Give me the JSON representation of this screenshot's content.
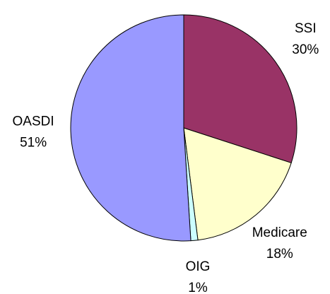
{
  "chart_data": {
    "type": "pie",
    "categories": [
      "SSI",
      "Medicare",
      "OIG",
      "OASDI"
    ],
    "values": [
      30,
      18,
      1,
      51
    ],
    "value_labels": [
      "30%",
      "18%",
      "1%",
      "51%"
    ],
    "colors": [
      "#993366",
      "#ffffcc",
      "#ccffff",
      "#9999ff"
    ]
  }
}
